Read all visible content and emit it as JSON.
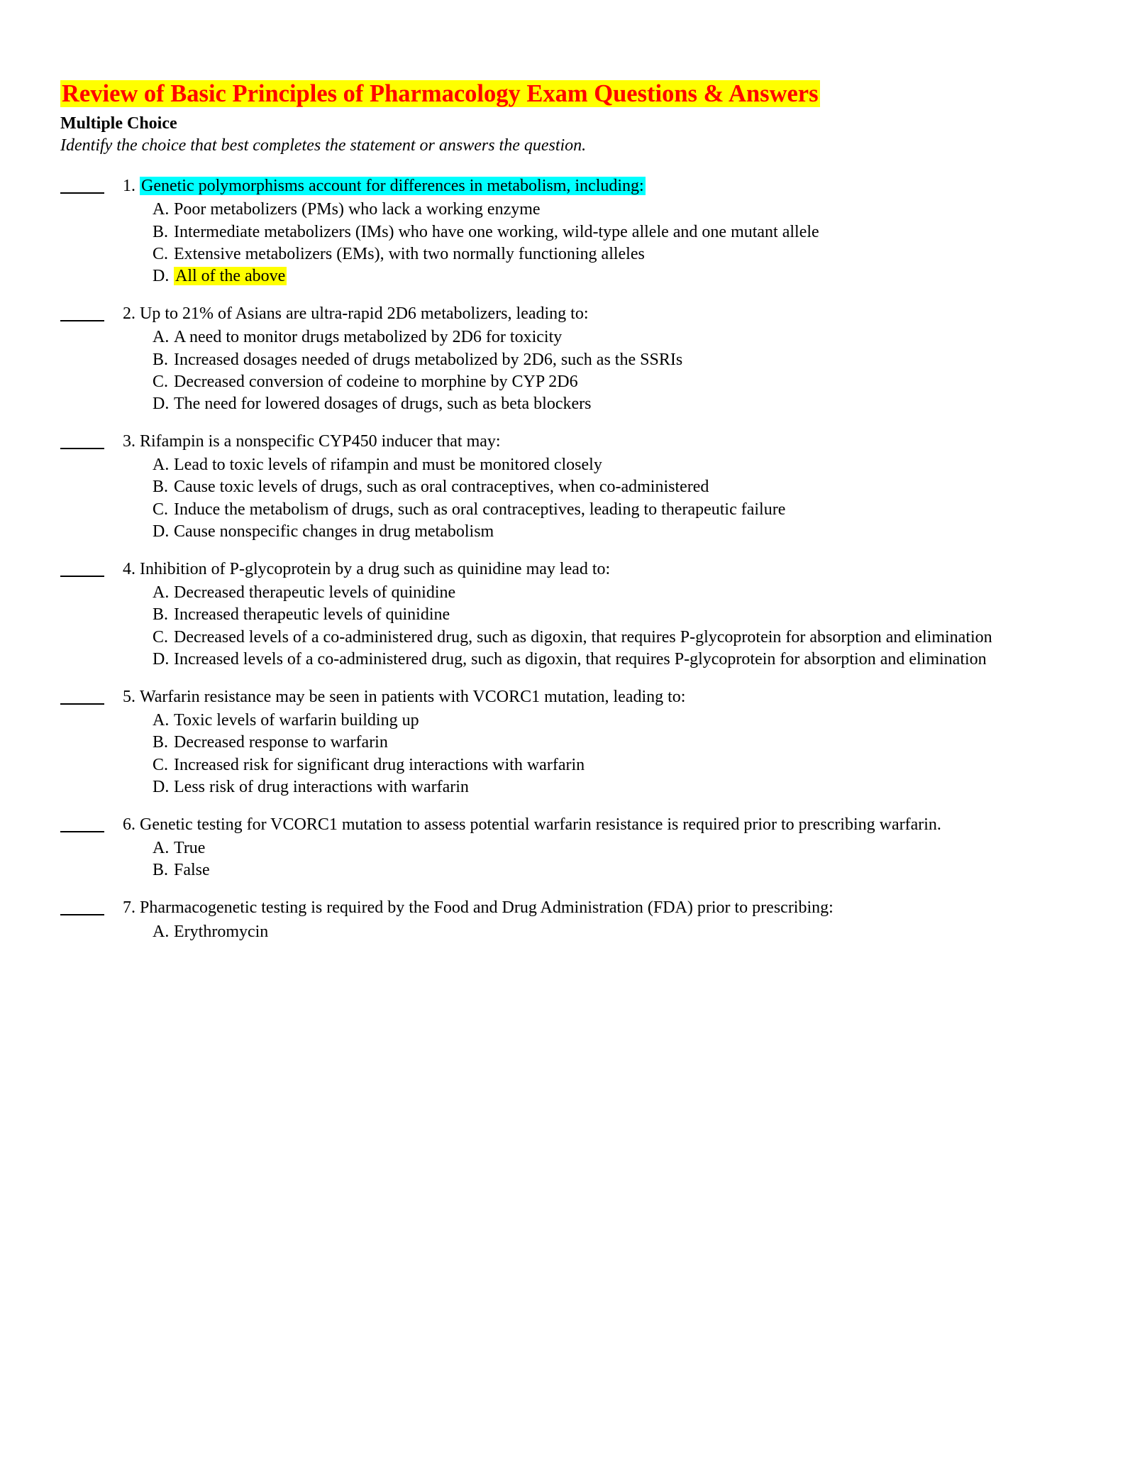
{
  "title": "Review of Basic Principles of Pharmacology Exam Questions & Answers",
  "section_label": "Multiple Choice",
  "instruction": "Identify the choice that best completes the statement or answers the question.",
  "questions": [
    {
      "num": "1.",
      "text": "Genetic polymorphisms account for differences in metabolism, including:",
      "text_highlight": "cyan",
      "choices": [
        {
          "letter": "A.",
          "text": "Poor metabolizers (PMs) who lack a working enzyme"
        },
        {
          "letter": "B.",
          "text": "Intermediate metabolizers (IMs) who have one working, wild-type allele and one mutant allele"
        },
        {
          "letter": "C.",
          "text": "Extensive metabolizers (EMs), with two normally functioning alleles"
        },
        {
          "letter": "D.",
          "text": "All of the above",
          "highlight": "yellow"
        }
      ]
    },
    {
      "num": "2.",
      "text": "Up to 21% of Asians are ultra-rapid 2D6 metabolizers, leading to:",
      "choices": [
        {
          "letter": "A.",
          "text": "A need to monitor drugs metabolized by 2D6 for toxicity"
        },
        {
          "letter": "B.",
          "text": "Increased dosages needed of drugs metabolized by 2D6, such as the SSRIs"
        },
        {
          "letter": "C.",
          "text": "Decreased conversion of codeine to morphine by CYP 2D6"
        },
        {
          "letter": "D.",
          "text": "The need for lowered dosages of drugs, such as beta blockers"
        }
      ]
    },
    {
      "num": "3.",
      "text": "Rifampin is a nonspecific CYP450 inducer that may:",
      "choices": [
        {
          "letter": "A.",
          "text": "Lead to toxic levels of rifampin and must be monitored closely"
        },
        {
          "letter": "B.",
          "text": "Cause toxic levels of drugs, such as oral contraceptives, when co-administered"
        },
        {
          "letter": "C.",
          "text": "Induce the metabolism of drugs, such as oral contraceptives, leading to therapeutic failure"
        },
        {
          "letter": "D.",
          "text": "Cause nonspecific changes in drug metabolism"
        }
      ]
    },
    {
      "num": "4.",
      "text": "Inhibition of P-glycoprotein by a drug such as quinidine may lead to:",
      "choices": [
        {
          "letter": "A.",
          "text": "Decreased therapeutic levels of quinidine"
        },
        {
          "letter": "B.",
          "text": "Increased therapeutic levels of quinidine"
        },
        {
          "letter": "C.",
          "text": "Decreased levels of a co-administered drug, such as digoxin, that requires P-glycoprotein for absorption and elimination"
        },
        {
          "letter": "D.",
          "text": "Increased levels of a co-administered drug, such as digoxin, that requires P-glycoprotein for absorption and elimination"
        }
      ]
    },
    {
      "num": "5.",
      "text": "Warfarin resistance may be seen in patients with VCORC1 mutation, leading to:",
      "choices": [
        {
          "letter": "A.",
          "text": "Toxic levels of warfarin building up"
        },
        {
          "letter": "B.",
          "text": "Decreased response to warfarin"
        },
        {
          "letter": "C.",
          "text": "Increased risk for significant drug interactions with warfarin"
        },
        {
          "letter": "D.",
          "text": "Less risk of drug interactions with warfarin"
        }
      ]
    },
    {
      "num": "6.",
      "text": "Genetic testing for VCORC1 mutation to assess potential warfarin resistance is required prior to prescribing warfarin.",
      "text_inline_num": true,
      "choices": [
        {
          "letter": "A.",
          "text": "True"
        },
        {
          "letter": "B.",
          "text": "False"
        }
      ]
    },
    {
      "num": "7.",
      "text": "Pharmacogenetic testing is required by the Food and Drug Administration (FDA) prior to prescribing:",
      "text_inline_num": true,
      "choices": [
        {
          "letter": "A.",
          "text": "Erythromycin"
        }
      ]
    }
  ]
}
